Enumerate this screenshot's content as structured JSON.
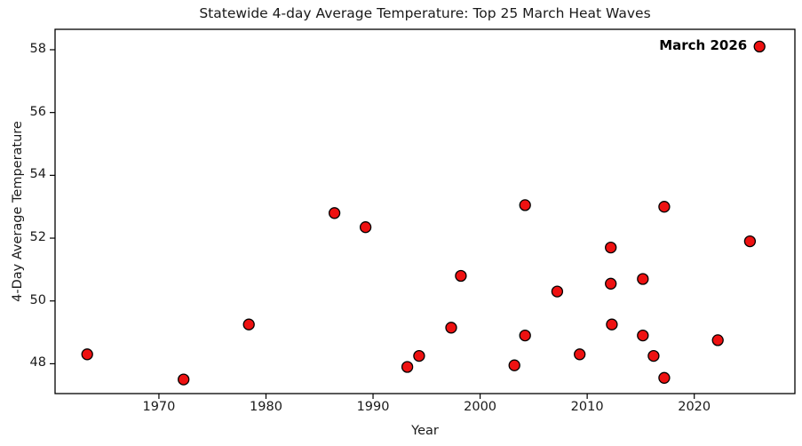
{
  "chart_data": {
    "type": "scatter",
    "title": "Statewide 4-day Average Temperature: Top 25 March Heat Waves",
    "xlabel": "Year",
    "ylabel": "4-Day Average Temperature",
    "xlim": [
      1960.3,
      2029.4
    ],
    "ylim": [
      47.05,
      58.65
    ],
    "x_ticks": [
      1970,
      1980,
      1990,
      2000,
      2010,
      2020
    ],
    "y_ticks": [
      48,
      50,
      52,
      54,
      56,
      58
    ],
    "grid": "off",
    "legend_position": "none",
    "marker_color": "#ee1111",
    "marker_edge_color": "#000000",
    "annotation": {
      "text": "March 2026",
      "x": 2026.1,
      "y": 58.1
    },
    "series": [
      {
        "name": "March heat waves",
        "points": [
          [
            1963.3,
            48.3
          ],
          [
            1972.3,
            47.5
          ],
          [
            1978.4,
            49.25
          ],
          [
            1986.4,
            52.8
          ],
          [
            1989.3,
            52.35
          ],
          [
            1993.2,
            47.9
          ],
          [
            1994.3,
            48.25
          ],
          [
            1997.3,
            49.15
          ],
          [
            1998.2,
            50.8
          ],
          [
            2003.2,
            47.95
          ],
          [
            2004.2,
            53.05
          ],
          [
            2004.2,
            48.9
          ],
          [
            2007.2,
            50.3
          ],
          [
            2009.3,
            48.3
          ],
          [
            2012.2,
            51.7
          ],
          [
            2012.2,
            50.55
          ],
          [
            2012.3,
            49.25
          ],
          [
            2015.2,
            50.7
          ],
          [
            2015.2,
            48.9
          ],
          [
            2016.2,
            48.25
          ],
          [
            2017.2,
            53.0
          ],
          [
            2017.2,
            47.55
          ],
          [
            2022.2,
            48.75
          ],
          [
            2025.2,
            51.9
          ],
          [
            2026.1,
            58.1
          ]
        ]
      }
    ]
  }
}
